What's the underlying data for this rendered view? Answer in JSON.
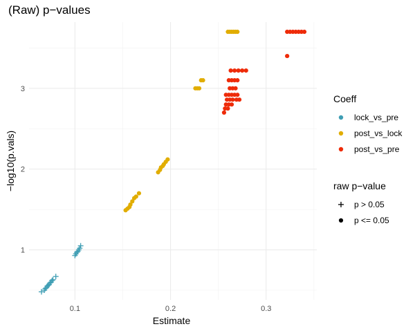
{
  "chart_data": {
    "type": "scatter",
    "title": "(Raw) p−values",
    "xlabel": "Estimate",
    "ylabel": "−log10(p.vals)",
    "xlim": [
      0.052,
      0.353
    ],
    "ylim": [
      0.38,
      3.82
    ],
    "x_ticks": [
      0.1,
      0.2,
      0.3
    ],
    "x_tick_labels": [
      "0.1",
      "0.2",
      "0.3"
    ],
    "y_ticks": [
      1,
      2,
      3
    ],
    "y_tick_labels": [
      "1",
      "2",
      "3"
    ],
    "grid": true,
    "colors": {
      "lock_vs_pre": "#3f9eb4",
      "post_vs_lock": "#e1ad01",
      "post_vs_pre": "#ee2b09"
    },
    "legend": [
      {
        "title": "Coeff",
        "type": "color",
        "entries": [
          {
            "label": "lock_vs_pre",
            "key": "lock_vs_pre"
          },
          {
            "label": "post_vs_lock",
            "key": "post_vs_lock"
          },
          {
            "label": "post_vs_pre",
            "key": "post_vs_pre"
          }
        ]
      },
      {
        "title": "raw p−value",
        "type": "shape",
        "entries": [
          {
            "label": "p >  0.05",
            "shape": "plus"
          },
          {
            "label": "p <= 0.05",
            "shape": "circle"
          }
        ]
      }
    ],
    "series": [
      {
        "name": "lock_vs_pre",
        "points": [
          [
            0.065,
            0.48,
            "plus"
          ],
          [
            0.068,
            0.5,
            "plus"
          ],
          [
            0.069,
            0.52,
            "plus"
          ],
          [
            0.07,
            0.53,
            "plus"
          ],
          [
            0.071,
            0.55,
            "plus"
          ],
          [
            0.072,
            0.56,
            "plus"
          ],
          [
            0.073,
            0.57,
            "plus"
          ],
          [
            0.074,
            0.59,
            "plus"
          ],
          [
            0.075,
            0.6,
            "plus"
          ],
          [
            0.076,
            0.62,
            "plus"
          ],
          [
            0.077,
            0.63,
            "plus"
          ],
          [
            0.08,
            0.67,
            "plus"
          ],
          [
            0.1,
            0.93,
            "plus"
          ],
          [
            0.101,
            0.95,
            "plus"
          ],
          [
            0.102,
            0.97,
            "plus"
          ],
          [
            0.103,
            0.98,
            "plus"
          ],
          [
            0.104,
            1.0,
            "plus"
          ],
          [
            0.105,
            1.02,
            "plus"
          ],
          [
            0.106,
            1.05,
            "plus"
          ]
        ]
      },
      {
        "name": "post_vs_lock",
        "points": [
          [
            0.153,
            1.49,
            "circle"
          ],
          [
            0.155,
            1.51,
            "circle"
          ],
          [
            0.157,
            1.53,
            "circle"
          ],
          [
            0.158,
            1.56,
            "circle"
          ],
          [
            0.16,
            1.6,
            "circle"
          ],
          [
            0.162,
            1.64,
            "circle"
          ],
          [
            0.164,
            1.66,
            "circle"
          ],
          [
            0.167,
            1.7,
            "circle"
          ],
          [
            0.187,
            1.96,
            "circle"
          ],
          [
            0.189,
            1.99,
            "circle"
          ],
          [
            0.19,
            2.02,
            "circle"
          ],
          [
            0.192,
            2.04,
            "circle"
          ],
          [
            0.193,
            2.06,
            "circle"
          ],
          [
            0.195,
            2.09,
            "circle"
          ],
          [
            0.197,
            2.12,
            "circle"
          ],
          [
            0.226,
            3.0,
            "circle"
          ],
          [
            0.228,
            3.0,
            "circle"
          ],
          [
            0.23,
            3.0,
            "circle"
          ],
          [
            0.232,
            3.1,
            "circle"
          ],
          [
            0.234,
            3.1,
            "circle"
          ],
          [
            0.26,
            3.7,
            "circle"
          ],
          [
            0.262,
            3.7,
            "circle"
          ],
          [
            0.264,
            3.7,
            "circle"
          ],
          [
            0.266,
            3.7,
            "circle"
          ],
          [
            0.268,
            3.7,
            "circle"
          ],
          [
            0.27,
            3.7,
            "circle"
          ]
        ]
      },
      {
        "name": "post_vs_pre",
        "points": [
          [
            0.256,
            2.7,
            "circle"
          ],
          [
            0.257,
            2.75,
            "circle"
          ],
          [
            0.26,
            2.75,
            "circle"
          ],
          [
            0.258,
            2.8,
            "circle"
          ],
          [
            0.261,
            2.8,
            "circle"
          ],
          [
            0.264,
            2.8,
            "circle"
          ],
          [
            0.259,
            2.86,
            "circle"
          ],
          [
            0.262,
            2.86,
            "circle"
          ],
          [
            0.265,
            2.86,
            "circle"
          ],
          [
            0.269,
            2.86,
            "circle"
          ],
          [
            0.272,
            2.86,
            "circle"
          ],
          [
            0.258,
            2.92,
            "circle"
          ],
          [
            0.261,
            2.92,
            "circle"
          ],
          [
            0.264,
            2.92,
            "circle"
          ],
          [
            0.267,
            2.92,
            "circle"
          ],
          [
            0.27,
            2.92,
            "circle"
          ],
          [
            0.262,
            3.0,
            "circle"
          ],
          [
            0.265,
            3.0,
            "circle"
          ],
          [
            0.268,
            3.0,
            "circle"
          ],
          [
            0.261,
            3.1,
            "circle"
          ],
          [
            0.264,
            3.1,
            "circle"
          ],
          [
            0.267,
            3.1,
            "circle"
          ],
          [
            0.27,
            3.1,
            "circle"
          ],
          [
            0.263,
            3.22,
            "circle"
          ],
          [
            0.267,
            3.22,
            "circle"
          ],
          [
            0.271,
            3.22,
            "circle"
          ],
          [
            0.275,
            3.22,
            "circle"
          ],
          [
            0.279,
            3.22,
            "circle"
          ],
          [
            0.322,
            3.4,
            "circle"
          ],
          [
            0.322,
            3.7,
            "circle"
          ],
          [
            0.325,
            3.7,
            "circle"
          ],
          [
            0.328,
            3.7,
            "circle"
          ],
          [
            0.331,
            3.7,
            "circle"
          ],
          [
            0.334,
            3.7,
            "circle"
          ],
          [
            0.337,
            3.7,
            "circle"
          ],
          [
            0.34,
            3.7,
            "circle"
          ]
        ]
      }
    ]
  }
}
